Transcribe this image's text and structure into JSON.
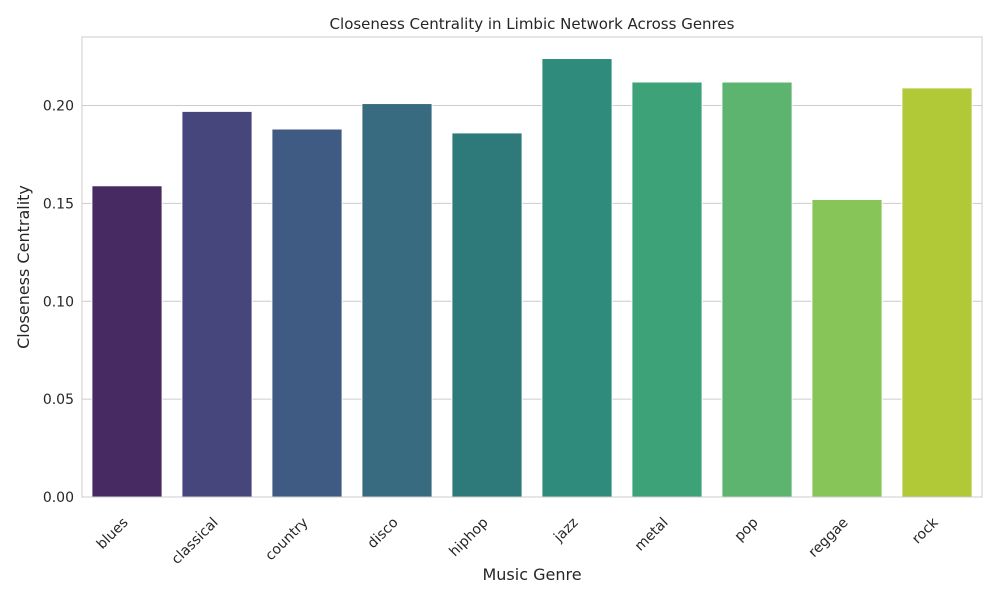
{
  "chart_data": {
    "type": "bar",
    "title": "Closeness Centrality in Limbic Network Across Genres",
    "xlabel": "Music Genre",
    "ylabel": "Closeness Centrality",
    "categories": [
      "blues",
      "classical",
      "country",
      "disco",
      "hiphop",
      "jazz",
      "metal",
      "pop",
      "reggae",
      "rock"
    ],
    "values": [
      0.159,
      0.197,
      0.188,
      0.201,
      0.186,
      0.224,
      0.212,
      0.212,
      0.152,
      0.209
    ],
    "ylim": [
      0,
      0.235
    ],
    "yticks": [
      0.0,
      0.05,
      0.1,
      0.15,
      0.2
    ],
    "ytick_labels": [
      "0.00",
      "0.05",
      "0.10",
      "0.15",
      "0.20"
    ],
    "grid": "horizontal",
    "colors": [
      "#482a63",
      "#47467c",
      "#405b83",
      "#386b80",
      "#2e7a7a",
      "#2f8b7c",
      "#3da278",
      "#5cb46e",
      "#88c558",
      "#b1c936"
    ]
  }
}
